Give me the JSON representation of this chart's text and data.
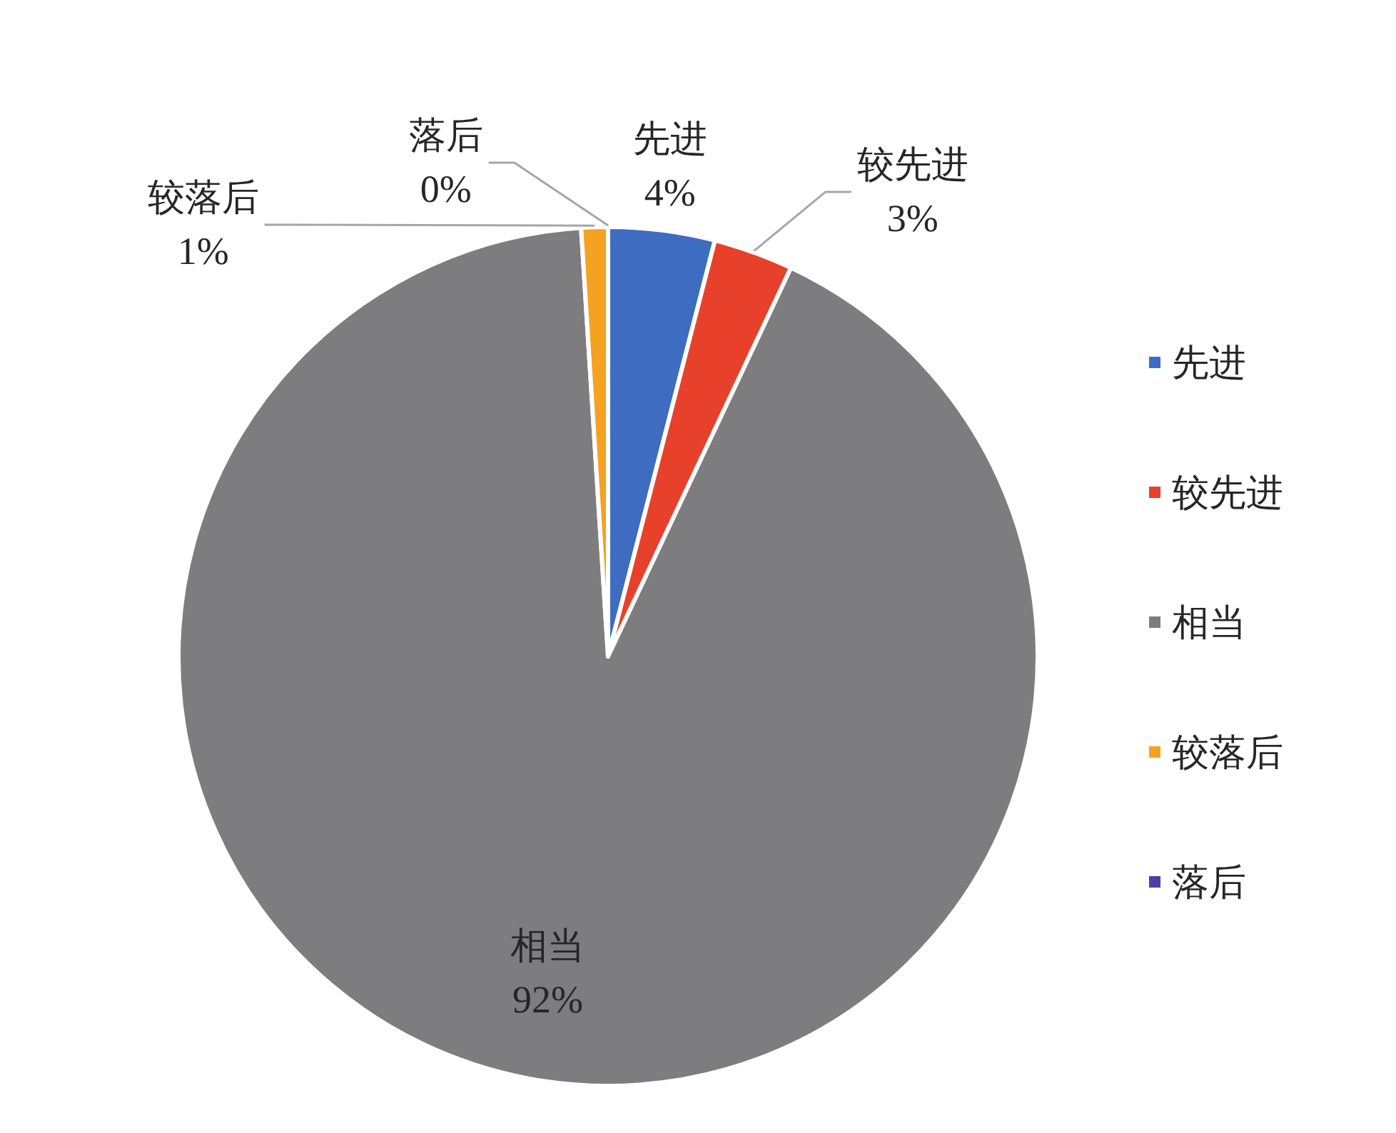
{
  "chart_data": {
    "type": "pie",
    "categories": [
      "先进",
      "较先进",
      "相当",
      "较落后",
      "落后"
    ],
    "values": [
      4,
      3,
      92,
      1,
      0
    ],
    "value_labels": [
      "4%",
      "3%",
      "92%",
      "1%",
      "0%"
    ],
    "colors": [
      "#3d6cc0",
      "#e8412b",
      "#7d7d80",
      "#f5a221",
      "#4b3fa6"
    ],
    "legend": "right"
  }
}
